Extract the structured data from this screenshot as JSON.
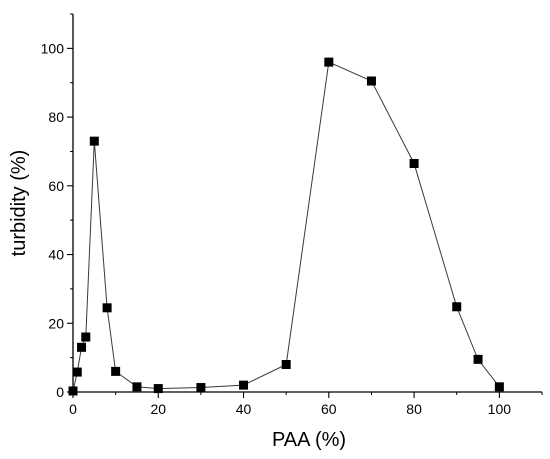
{
  "chart_data": {
    "type": "line",
    "title": "",
    "xlabel": "PAA (%)",
    "ylabel": "turbidity (%)",
    "xlim": [
      0,
      110
    ],
    "ylim": [
      0,
      110
    ],
    "x_ticks": [
      0,
      20,
      40,
      60,
      80,
      100
    ],
    "y_ticks": [
      0,
      20,
      40,
      60,
      80,
      100
    ],
    "grid": false,
    "legend": "none",
    "marker": "square",
    "series": [
      {
        "x": [
          0,
          1,
          2,
          3,
          5,
          8,
          10,
          15,
          20,
          30,
          40,
          50,
          60,
          70,
          80,
          90,
          95,
          100
        ],
        "y": [
          0.3,
          5.8,
          13,
          16,
          73,
          24.5,
          6,
          1.5,
          1,
          1.3,
          2,
          8,
          96,
          90.5,
          66.5,
          24.8,
          9.5,
          1.5
        ]
      }
    ]
  }
}
